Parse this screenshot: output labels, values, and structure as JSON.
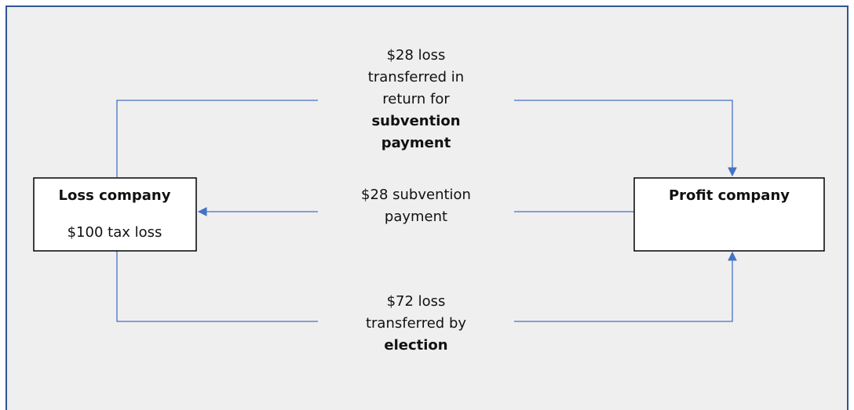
{
  "nodes": [
    {
      "title": "Loss company",
      "text": "$100 tax loss"
    },
    {
      "title": "Profit company"
    }
  ],
  "edges": [
    {
      "lines": [
        "$28 loss",
        "transferred in",
        "return for"
      ],
      "bold_lines": [
        "subvention",
        "payment"
      ]
    },
    {
      "lines": [
        "$28 subvention",
        "payment"
      ]
    },
    {
      "lines": [
        "$72 loss",
        "transferred by"
      ],
      "bold_lines": [
        "election"
      ]
    }
  ]
}
